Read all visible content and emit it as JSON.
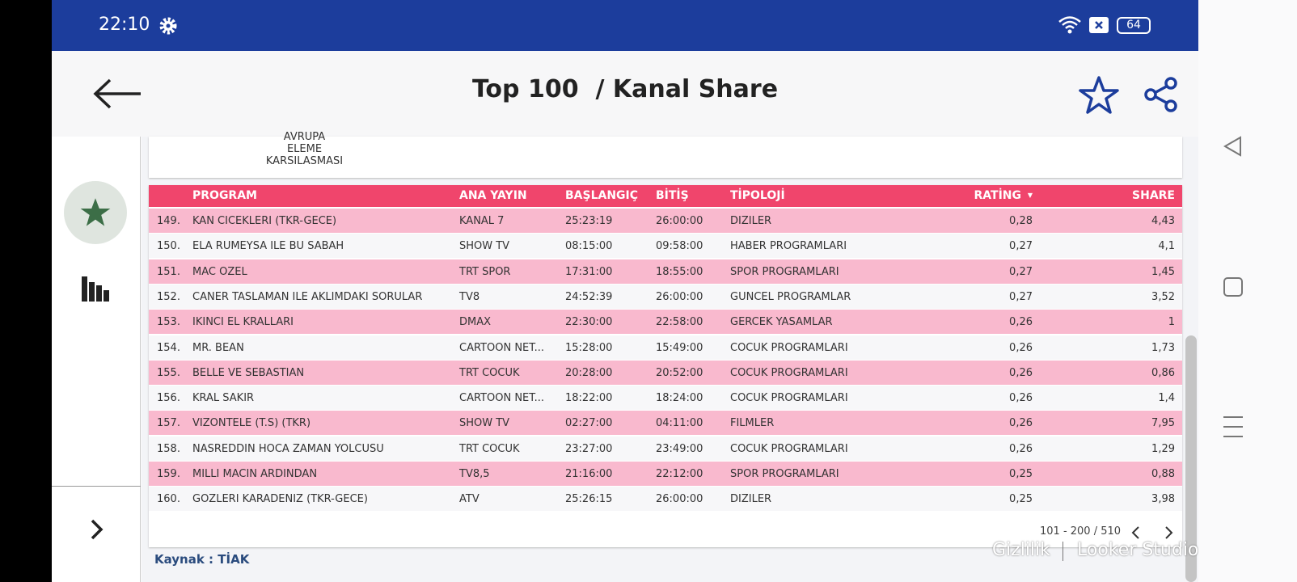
{
  "status_bar": {
    "time": "22:10",
    "battery": "64"
  },
  "app_bar": {
    "title": "Top 100  / Kanal Share"
  },
  "previous_row": {
    "lines": [
      "AVRUPA",
      "ELEME",
      "KARSILASMASI"
    ]
  },
  "table": {
    "headers": [
      "PROGRAM",
      "ANA YAYIN",
      "BAŞLANGIÇ",
      "BİTİŞ",
      "TİPOLOJİ",
      "RATİNG",
      "SHARE"
    ],
    "sort_indicator": "▼",
    "rows": [
      [
        "149.",
        "KAN CICEKLERI (TKR-GECE)",
        "KANAL 7",
        "25:23:19",
        "26:00:00",
        "DIZILER",
        "0,28",
        "4,43"
      ],
      [
        "150.",
        "ELA RUMEYSA ILE BU SABAH",
        "SHOW TV",
        "08:15:00",
        "09:58:00",
        "HABER PROGRAMLARI",
        "0,27",
        "4,1"
      ],
      [
        "151.",
        "MAC OZEL",
        "TRT SPOR",
        "17:31:00",
        "18:55:00",
        "SPOR PROGRAMLARI",
        "0,27",
        "1,45"
      ],
      [
        "152.",
        "CANER TASLAMAN ILE AKLIMDAKI SORULAR",
        "TV8",
        "24:52:39",
        "26:00:00",
        "GUNCEL PROGRAMLAR",
        "0,27",
        "3,52"
      ],
      [
        "153.",
        "IKINCI EL KRALLARI",
        "DMAX",
        "22:30:00",
        "22:58:00",
        "GERCEK YASAMLAR",
        "0,26",
        "1"
      ],
      [
        "154.",
        "MR. BEAN",
        "CARTOON NET...",
        "15:28:00",
        "15:49:00",
        "COCUK PROGRAMLARI",
        "0,26",
        "1,73"
      ],
      [
        "155.",
        "BELLE VE SEBASTIAN",
        "TRT COCUK",
        "20:28:00",
        "20:52:00",
        "COCUK PROGRAMLARI",
        "0,26",
        "0,86"
      ],
      [
        "156.",
        "KRAL SAKIR",
        "CARTOON NET...",
        "18:22:00",
        "18:24:00",
        "COCUK PROGRAMLARI",
        "0,26",
        "1,4"
      ],
      [
        "157.",
        "VIZONTELE (T.S) (TKR)",
        "SHOW TV",
        "02:27:00",
        "04:11:00",
        "FILMLER",
        "0,26",
        "7,95"
      ],
      [
        "158.",
        "NASREDDIN HOCA ZAMAN YOLCUSU",
        "TRT COCUK",
        "23:27:00",
        "23:49:00",
        "COCUK PROGRAMLARI",
        "0,26",
        "1,29"
      ],
      [
        "159.",
        "MILLI MACIN ARDINDAN",
        "TV8,5",
        "21:16:00",
        "22:12:00",
        "SPOR PROGRAMLARI",
        "0,25",
        "0,88"
      ],
      [
        "160.",
        "GOZLERI KARADENIZ (TKR-GECE)",
        "ATV",
        "25:26:15",
        "26:00:00",
        "DIZILER",
        "0,25",
        "3,98"
      ]
    ],
    "pagination": "101 - 200 / 510"
  },
  "footer": {
    "source": "Kaynak : TİAK",
    "privacy": "Gizlilik",
    "brand": "Looker Studio"
  }
}
